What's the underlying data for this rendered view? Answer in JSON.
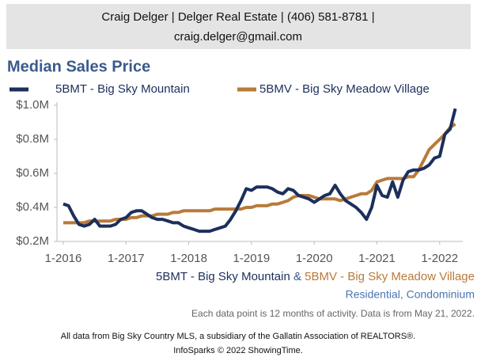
{
  "header": {
    "line1": "Craig Delger | Delger Real Estate | (406) 581-8781 |",
    "line2": "craig.delger@gmail.com"
  },
  "chart_data": {
    "type": "line",
    "title": "Median Sales Price",
    "x": [
      "1-2016",
      "2-2016",
      "3-2016",
      "4-2016",
      "5-2016",
      "6-2016",
      "7-2016",
      "8-2016",
      "9-2016",
      "10-2016",
      "11-2016",
      "12-2016",
      "1-2017",
      "2-2017",
      "3-2017",
      "4-2017",
      "5-2017",
      "6-2017",
      "7-2017",
      "8-2017",
      "9-2017",
      "10-2017",
      "11-2017",
      "12-2017",
      "1-2018",
      "2-2018",
      "3-2018",
      "4-2018",
      "5-2018",
      "6-2018",
      "7-2018",
      "8-2018",
      "9-2018",
      "10-2018",
      "11-2018",
      "12-2018",
      "1-2019",
      "2-2019",
      "3-2019",
      "4-2019",
      "5-2019",
      "6-2019",
      "7-2019",
      "8-2019",
      "9-2019",
      "10-2019",
      "11-2019",
      "12-2019",
      "1-2020",
      "2-2020",
      "3-2020",
      "4-2020",
      "5-2020",
      "6-2020",
      "7-2020",
      "8-2020",
      "9-2020",
      "10-2020",
      "11-2020",
      "12-2020",
      "1-2021",
      "2-2021",
      "3-2021",
      "4-2021",
      "5-2021",
      "6-2021",
      "7-2021",
      "8-2021",
      "9-2021",
      "10-2021",
      "11-2021",
      "12-2021",
      "1-2022",
      "2-2022",
      "3-2022",
      "4-2022"
    ],
    "xticks": [
      "1-2016",
      "1-2017",
      "1-2018",
      "1-2019",
      "1-2020",
      "1-2021",
      "1-2022"
    ],
    "ylim": [
      0.2,
      1.0
    ],
    "yticks": [
      {
        "value": 0.2,
        "label": "$0.2M"
      },
      {
        "value": 0.4,
        "label": "$0.4M"
      },
      {
        "value": 0.6,
        "label": "$0.6M"
      },
      {
        "value": 0.8,
        "label": "$0.8M"
      },
      {
        "value": 1.0,
        "label": "$1.0M"
      }
    ],
    "grid": false,
    "series": [
      {
        "name": "5BMT - Big Sky Mountain",
        "color": "#1c2f5c",
        "values": [
          0.42,
          0.41,
          0.35,
          0.3,
          0.29,
          0.3,
          0.33,
          0.29,
          0.29,
          0.29,
          0.3,
          0.33,
          0.34,
          0.37,
          0.38,
          0.38,
          0.36,
          0.34,
          0.33,
          0.33,
          0.32,
          0.31,
          0.31,
          0.29,
          0.28,
          0.27,
          0.26,
          0.26,
          0.26,
          0.27,
          0.28,
          0.29,
          0.33,
          0.38,
          0.44,
          0.51,
          0.5,
          0.52,
          0.52,
          0.52,
          0.51,
          0.49,
          0.48,
          0.51,
          0.5,
          0.47,
          0.46,
          0.45,
          0.43,
          0.45,
          0.47,
          0.48,
          0.53,
          0.48,
          0.44,
          0.42,
          0.4,
          0.37,
          0.33,
          0.4,
          0.53,
          0.47,
          0.46,
          0.55,
          0.46,
          0.56,
          0.61,
          0.62,
          0.62,
          0.63,
          0.65,
          0.69,
          0.7,
          0.83,
          0.86,
          0.98
        ]
      },
      {
        "name": "5BMV - Big Sky Meadow Village",
        "color": "#b97a3a",
        "values": [
          0.31,
          0.31,
          0.31,
          0.31,
          0.31,
          0.32,
          0.32,
          0.32,
          0.32,
          0.32,
          0.33,
          0.33,
          0.33,
          0.34,
          0.34,
          0.35,
          0.35,
          0.35,
          0.36,
          0.36,
          0.36,
          0.37,
          0.37,
          0.38,
          0.38,
          0.38,
          0.38,
          0.38,
          0.38,
          0.39,
          0.39,
          0.39,
          0.39,
          0.39,
          0.39,
          0.4,
          0.4,
          0.41,
          0.41,
          0.41,
          0.42,
          0.42,
          0.43,
          0.44,
          0.46,
          0.47,
          0.47,
          0.47,
          0.46,
          0.45,
          0.45,
          0.45,
          0.45,
          0.44,
          0.45,
          0.46,
          0.47,
          0.48,
          0.48,
          0.5,
          0.55,
          0.56,
          0.57,
          0.57,
          0.57,
          0.57,
          0.58,
          0.58,
          0.62,
          0.68,
          0.74,
          0.77,
          0.8,
          0.83,
          0.87,
          0.89
        ]
      }
    ],
    "legend": "top",
    "subtitle_connector": "&",
    "property_types": "Residential, Condominium",
    "note": "Each data point is 12 months of activity. Data is from May 21, 2022."
  },
  "footer": {
    "line1": "All data from Big Sky Country MLS, a subsidiary of the Gallatin Association of REALTORS®.",
    "line2": "InfoSparks © 2022 ShowingTime."
  }
}
